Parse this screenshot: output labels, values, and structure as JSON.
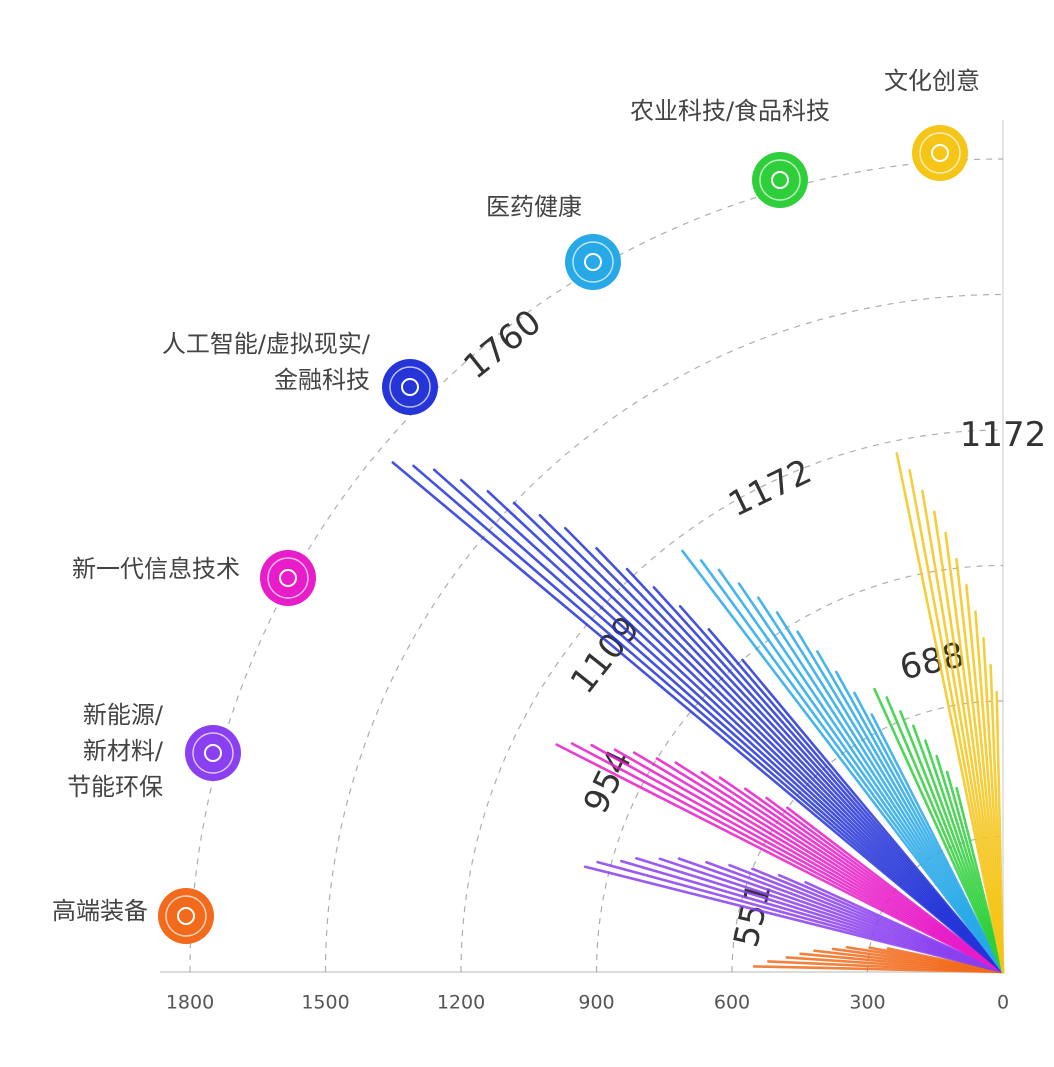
{
  "chart_data": {
    "type": "radial-rays",
    "xlim": [
      0,
      1800
    ],
    "xticks": [
      0,
      300,
      600,
      900,
      1200,
      1500,
      1800
    ],
    "sectors": [
      {
        "label": [
          "高端装备"
        ],
        "color": "#f26a1b",
        "peak": 551,
        "values": [
          551,
          520,
          480,
          450,
          420,
          380,
          350,
          300,
          260
        ]
      },
      {
        "label": [
          "新能源/",
          "新材料/",
          "节能环保"
        ],
        "color": "#8a3ff0",
        "peak": 954,
        "values": [
          954,
          930,
          880,
          850,
          800,
          760,
          700,
          650,
          600,
          540,
          480
        ]
      },
      {
        "label": [
          "新一代信息技术"
        ],
        "color": "#e81cc8",
        "peak": 1109,
        "values": [
          1109,
          1080,
          1040,
          990,
          950,
          900,
          860,
          800,
          760,
          700,
          650,
          600
        ]
      },
      {
        "label": [
          "人工智能/虚拟现实/",
          "金融科技"
        ],
        "color": "#2535d8",
        "peak": 1760,
        "values": [
          1760,
          1720,
          1680,
          1620,
          1560,
          1500,
          1440,
          1380,
          1300,
          1220,
          1150,
          1080,
          1000,
          900
        ]
      },
      {
        "label": [
          "医药健康"
        ],
        "color": "#27a9e8",
        "peak": 1172,
        "values": [
          1172,
          1130,
          1090,
          1040,
          990,
          940,
          880,
          820,
          760,
          700,
          640
        ]
      },
      {
        "label": [
          "农业科技/食品科技"
        ],
        "color": "#2ecf3a",
        "peak": 688,
        "values": [
          688,
          660,
          620,
          580,
          540,
          500,
          460,
          420
        ]
      },
      {
        "label": [
          "文化创意"
        ],
        "color": "#f5c518",
        "peak": 1172,
        "values": [
          1172,
          1130,
          1080,
          1030,
          980,
          920,
          860,
          800,
          740,
          680,
          620
        ]
      }
    ]
  }
}
